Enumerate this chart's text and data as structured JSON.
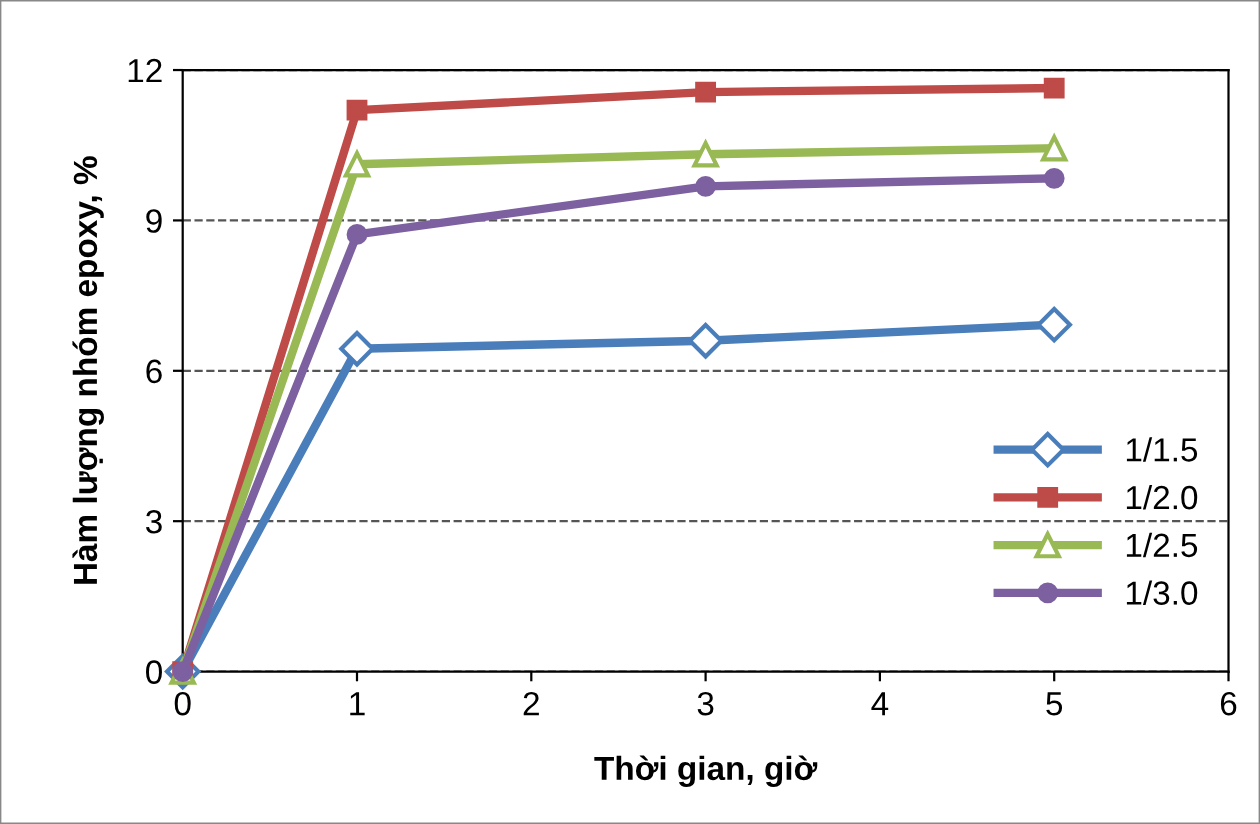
{
  "chart_data": {
    "type": "line",
    "xlabel": "Thời gian, giờ",
    "ylabel": "Hàm lượng nhóm epoxy, %",
    "x": [
      0,
      1,
      3,
      5
    ],
    "series": [
      {
        "name": "1/1.5",
        "color": "#4a7ebb",
        "marker": "diamond",
        "values": [
          0,
          6.44,
          6.6,
          6.92
        ]
      },
      {
        "name": "1/2.0",
        "color": "#be4b48",
        "marker": "square",
        "values": [
          0,
          11.2,
          11.56,
          11.64
        ]
      },
      {
        "name": "1/2.5",
        "color": "#98b954",
        "marker": "triangle",
        "values": [
          0,
          10.12,
          10.32,
          10.44
        ]
      },
      {
        "name": "1/3.0",
        "color": "#7d60a0",
        "marker": "circle",
        "values": [
          0,
          8.72,
          9.68,
          9.84
        ]
      }
    ],
    "xlim": [
      0,
      6
    ],
    "xticks": [
      0,
      1,
      2,
      3,
      4,
      5,
      6
    ],
    "ylim": [
      0,
      12
    ],
    "yticks": [
      0,
      3,
      6,
      9,
      12
    ],
    "grid": "y",
    "legend": "lower right",
    "line_style": "solid"
  }
}
